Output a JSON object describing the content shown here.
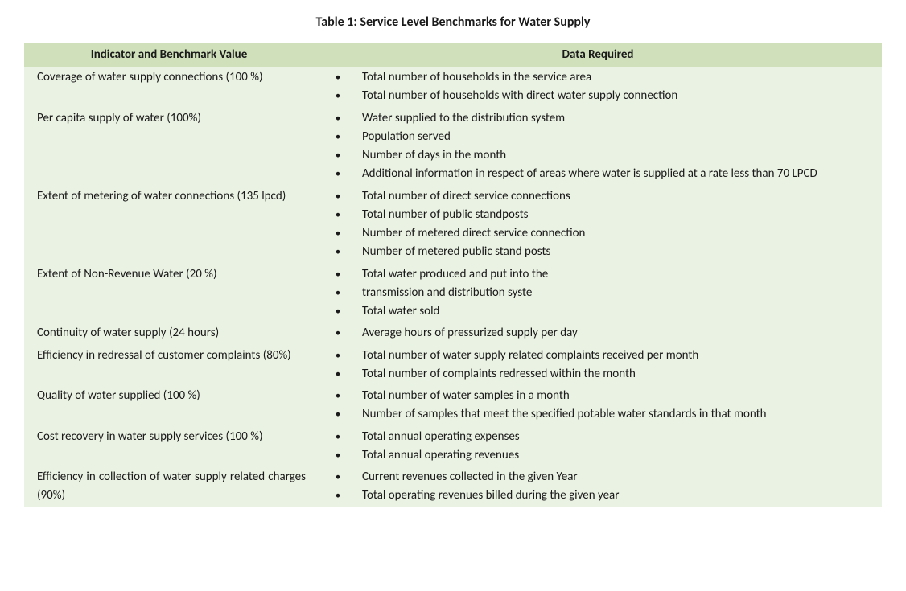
{
  "title": "Table 1: Service Level Benchmarks for Water Supply",
  "columns": {
    "indicator": "Indicator and Benchmark Value",
    "data": "Data Required"
  },
  "colors": {
    "page_bg": "#ffffff",
    "table_bg": "#eaf2e3",
    "header_bg": "#cfe0bb",
    "text": "#1a1a1a"
  },
  "typography": {
    "base_fontsize_pt": 11,
    "title_fontsize_pt": 12,
    "header_weight": 700,
    "body_weight": 400
  },
  "rows": [
    {
      "indicator": "Coverage of water supply connections (100 %)",
      "items": [
        "Total number of households in the service area",
        "Total number of households with direct water supply connection"
      ]
    },
    {
      "indicator": "Per capita supply of water (100%)",
      "items": [
        "Water supplied to the distribution system",
        "Population served",
        "Number of days in the month",
        "Additional information in respect of areas where water is supplied at a rate less than 70 LPCD"
      ]
    },
    {
      "indicator": "Extent of metering of water connections (135 lpcd)",
      "items": [
        "Total number of direct service connections",
        "Total number of public standposts",
        "Number of metered direct service connection",
        "Number of metered public stand posts"
      ]
    },
    {
      "indicator": "Extent of Non-Revenue Water (20 %)",
      "items": [
        "Total water produced and put into the",
        "transmission and distribution syste",
        "Total water sold"
      ]
    },
    {
      "indicator": "Continuity of water supply (24 hours)",
      "items": [
        "Average hours of pressurized supply per day"
      ]
    },
    {
      "indicator": "Efficiency in redressal of customer complaints (80%)",
      "items": [
        "Total number of water supply related complaints received per month",
        "Total number of complaints redressed within the month"
      ]
    },
    {
      "indicator": "Quality of water supplied (100 %)",
      "items": [
        "Total number of water samples in a month",
        "Number of samples that meet the specified potable water standards in that month"
      ]
    },
    {
      "indicator": "Cost recovery in water supply services (100 %)",
      "items": [
        "Total annual operating expenses",
        "Total annual operating revenues"
      ]
    },
    {
      "indicator": "Efficiency in collection of water supply related charges (90%)",
      "items": [
        "Current revenues collected in the given Year",
        "Total operating revenues billed during the given year"
      ]
    }
  ]
}
